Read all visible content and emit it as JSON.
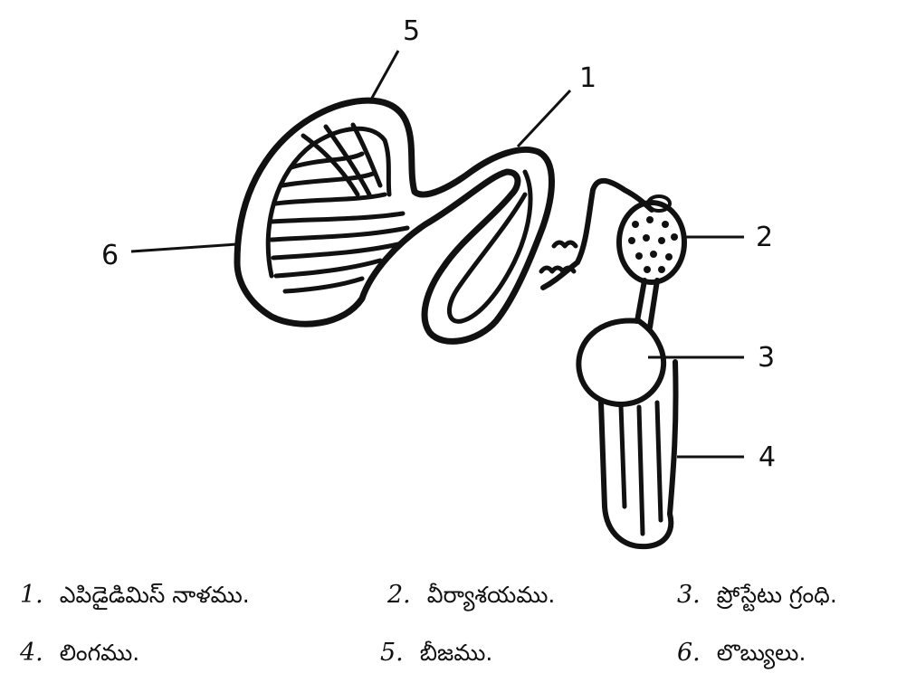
{
  "diagram": {
    "labels": [
      "5",
      "1",
      "6",
      "2",
      "3",
      "4"
    ]
  },
  "legend": {
    "items": [
      {
        "num": "1.",
        "text": "ఎపిడైడిమిస్ నాళము."
      },
      {
        "num": "2.",
        "text": "వీర్యాశయము."
      },
      {
        "num": "3.",
        "text": "ప్రోస్టేటు గ్రంధి."
      },
      {
        "num": "4.",
        "text": "లింగము."
      },
      {
        "num": "5.",
        "text": "బీజము."
      },
      {
        "num": "6.",
        "text": "లొబ్యులు."
      }
    ]
  },
  "colors": {
    "ink": "#111111",
    "background": "#ffffff"
  }
}
